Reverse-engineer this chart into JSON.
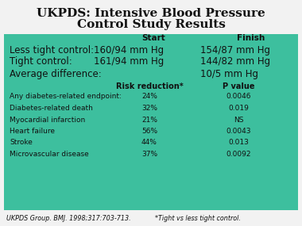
{
  "title_line1": "UKPDS: Intensive Blood Pressure",
  "title_line2": "Control Study Results",
  "bg_color": "#3dbf9e",
  "section1_header_start": "Start",
  "section1_header_finish": "Finish",
  "row1_label": "Less tight control:  160/94 mm Hg",
  "row1_finish": "154/87 mm Hg",
  "row2_label": "Tight control:        161/94 mm Hg",
  "row2_finish": "144/82 mm Hg",
  "row3_label": "Average difference:",
  "row3_finish": "10/5 mm Hg",
  "section2_col1": "Risk reduction*",
  "section2_col2": "P value",
  "outcomes": [
    "Any diabetes-related endpoint:",
    "Diabetes-related death",
    "Myocardial infarction",
    "Heart failure",
    "Stroke",
    "Microvascular disease"
  ],
  "risk_reductions": [
    "24%",
    "32%",
    "21%",
    "56%",
    "44%",
    "37%"
  ],
  "p_values": [
    "0.0046",
    "0.019",
    "NS",
    "0.0043",
    "0.013",
    "0.0092"
  ],
  "footnote1": "UKPDS Group. BMJ. 1998;317:703-713.",
  "footnote2": "*Tight vs less tight control."
}
